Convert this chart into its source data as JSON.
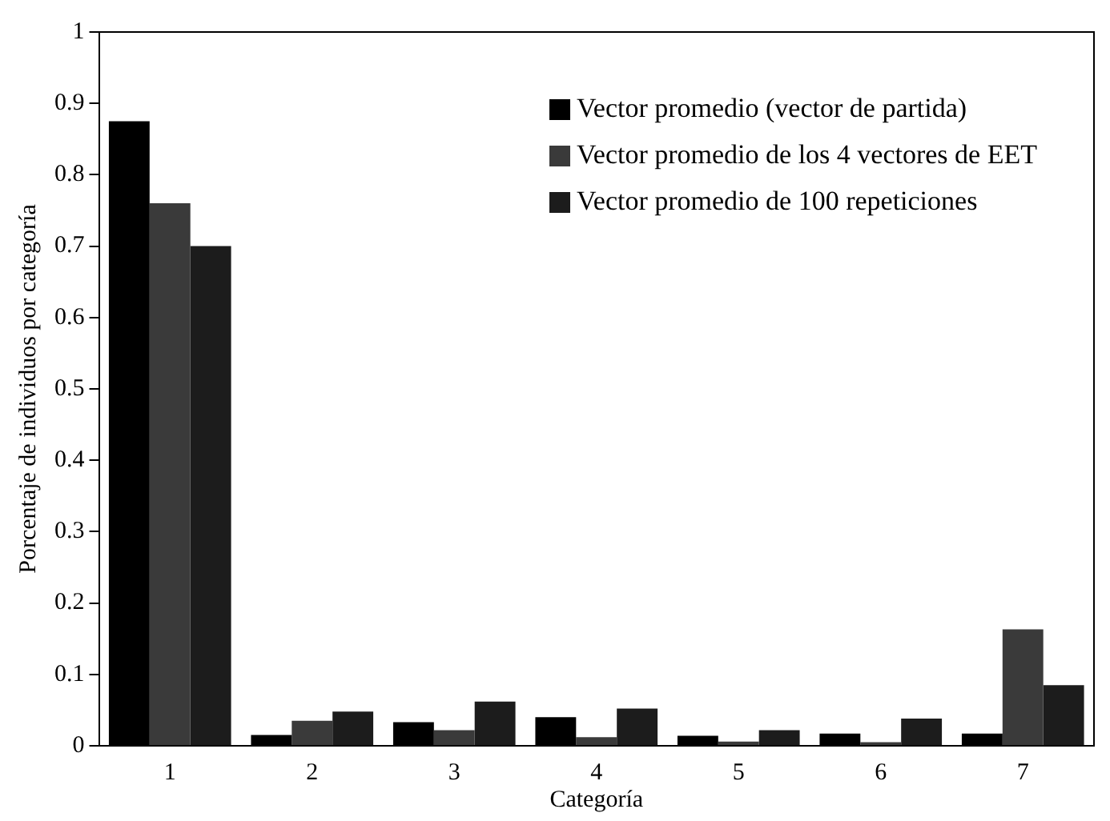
{
  "chart_data": {
    "type": "bar",
    "xlabel": "Categoría",
    "ylabel": "Porcentaje de individuos por categoría",
    "categories": [
      "1",
      "2",
      "3",
      "4",
      "5",
      "6",
      "7"
    ],
    "series": [
      {
        "name": "Vector promedio (vector de partida)",
        "color": "#000000",
        "values": [
          0.875,
          0.015,
          0.033,
          0.04,
          0.014,
          0.017,
          0.017
        ]
      },
      {
        "name": "Vector promedio de los 4 vectores de EET",
        "color": "#3a3a3a",
        "values": [
          0.76,
          0.035,
          0.022,
          0.012,
          0.006,
          0.005,
          0.163
        ]
      },
      {
        "name": "Vector promedio de 100 repeticiones",
        "color": "#1c1c1c",
        "values": [
          0.7,
          0.048,
          0.062,
          0.052,
          0.022,
          0.038,
          0.085
        ]
      }
    ],
    "ylim": [
      0,
      1
    ],
    "yticks": [
      0,
      0.1,
      0.2,
      0.3,
      0.4,
      0.5,
      0.6,
      0.7,
      0.8,
      0.9,
      1
    ],
    "grid": false,
    "legend": "top right"
  }
}
